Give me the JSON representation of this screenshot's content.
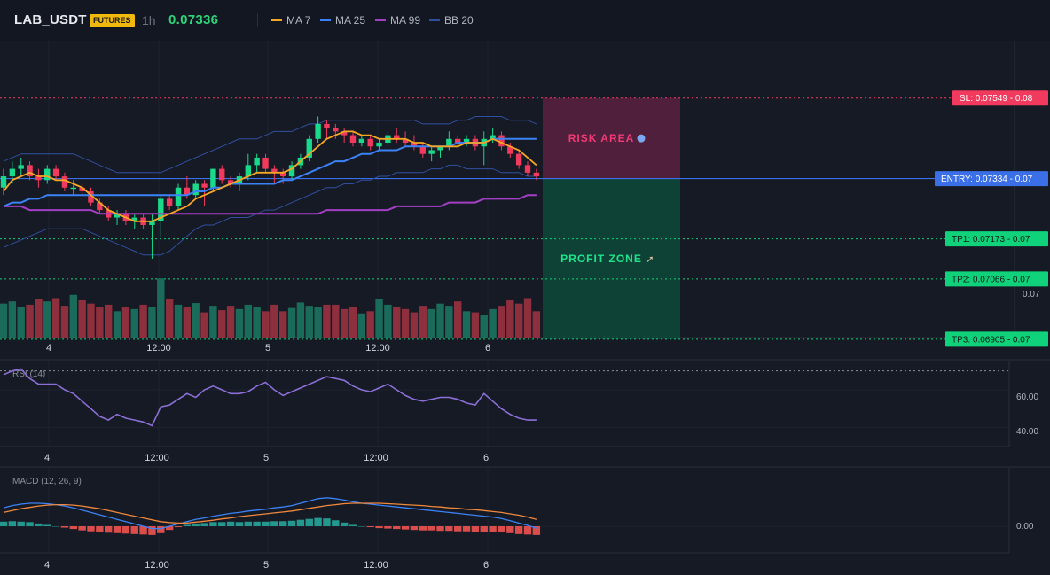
{
  "header": {
    "symbol": "LAB_USDT",
    "badge": "FUTURES",
    "timeframe": "1h",
    "price": "0.07336",
    "legend": [
      {
        "label": "MA 7",
        "color": "#f5a623"
      },
      {
        "label": "MA 25",
        "color": "#3b82f6"
      },
      {
        "label": "MA 99",
        "color": "#a43fc5"
      },
      {
        "label": "BB 20",
        "color": "#2f4f9e"
      }
    ]
  },
  "colors": {
    "up": "#19d98a",
    "down": "#f23a5e",
    "vol_up": "#1b6b5b",
    "vol_down": "#8e2f3e",
    "bg": "#161a25",
    "grid": "#1f2330"
  },
  "overlays": {
    "risk_label": "RISK AREA",
    "profit_label": "PROFIT ZONE",
    "sl_label": "SL: 0.07549 - 0.08",
    "entry_label": "ENTRY: 0.07334 - 0.07",
    "tp1_label": "TP1: 0.07173 - 0.07",
    "tp2_label": "TP2: 0.07066 - 0.07",
    "tp3_label": "TP3: 0.06905 - 0.07",
    "axis_price_label": "0.07",
    "sl": 0.07549,
    "entry": 0.07334,
    "tp1": 0.07173,
    "tp2": 0.07066,
    "tp3": 0.06905
  },
  "x_ticks": [
    "4",
    "12:00",
    "5",
    "12:00",
    "6"
  ],
  "chart_data": [
    {
      "type": "candlestick",
      "title": "LAB_USDT 1h",
      "candles": [
        [
          0.0731,
          0.0736,
          0.0729,
          0.0734
        ],
        [
          0.0734,
          0.0738,
          0.0732,
          0.0736
        ],
        [
          0.0736,
          0.0739,
          0.0734,
          0.0737
        ],
        [
          0.0737,
          0.0738,
          0.0733,
          0.0734
        ],
        [
          0.0734,
          0.0736,
          0.0731,
          0.0733
        ],
        [
          0.0733,
          0.0737,
          0.0732,
          0.0736
        ],
        [
          0.0736,
          0.0737,
          0.0733,
          0.0734
        ],
        [
          0.0734,
          0.0735,
          0.073,
          0.0731
        ],
        [
          0.0731,
          0.0733,
          0.0729,
          0.0731
        ],
        [
          0.0731,
          0.0732,
          0.0729,
          0.073
        ],
        [
          0.073,
          0.0731,
          0.0726,
          0.0727
        ],
        [
          0.0727,
          0.0728,
          0.0724,
          0.0725
        ],
        [
          0.0725,
          0.0726,
          0.0722,
          0.0723
        ],
        [
          0.0723,
          0.0725,
          0.0721,
          0.0724
        ],
        [
          0.0724,
          0.0725,
          0.0721,
          0.0722
        ],
        [
          0.0722,
          0.0724,
          0.072,
          0.0723
        ],
        [
          0.0723,
          0.0724,
          0.072,
          0.0721
        ],
        [
          0.0721,
          0.0724,
          0.0712,
          0.0722
        ],
        [
          0.0722,
          0.0729,
          0.0718,
          0.0728
        ],
        [
          0.0728,
          0.0729,
          0.0725,
          0.0726
        ],
        [
          0.0726,
          0.0732,
          0.0725,
          0.0731
        ],
        [
          0.0731,
          0.0734,
          0.0728,
          0.0729
        ],
        [
          0.0729,
          0.0733,
          0.0728,
          0.0732
        ],
        [
          0.0732,
          0.0733,
          0.0726,
          0.0731
        ],
        [
          0.0731,
          0.0736,
          0.073,
          0.0736
        ],
        [
          0.0736,
          0.0737,
          0.0732,
          0.0733
        ],
        [
          0.0733,
          0.0734,
          0.0731,
          0.0732
        ],
        [
          0.0732,
          0.0735,
          0.073,
          0.0734
        ],
        [
          0.0734,
          0.074,
          0.0733,
          0.0737
        ],
        [
          0.0737,
          0.074,
          0.0735,
          0.0739
        ],
        [
          0.0739,
          0.074,
          0.0735,
          0.0736
        ],
        [
          0.0736,
          0.0737,
          0.0732,
          0.0735
        ],
        [
          0.0735,
          0.0736,
          0.0732,
          0.0734
        ],
        [
          0.0734,
          0.0738,
          0.0733,
          0.0737
        ],
        [
          0.0737,
          0.074,
          0.0736,
          0.0739
        ],
        [
          0.0739,
          0.0745,
          0.0738,
          0.0744
        ],
        [
          0.0744,
          0.075,
          0.0743,
          0.0748
        ],
        [
          0.0748,
          0.0749,
          0.0744,
          0.0747
        ],
        [
          0.0747,
          0.0748,
          0.0744,
          0.0746
        ],
        [
          0.0746,
          0.0747,
          0.0743,
          0.0745
        ],
        [
          0.0745,
          0.0746,
          0.0742,
          0.0743
        ],
        [
          0.0743,
          0.0745,
          0.0742,
          0.0744
        ],
        [
          0.0744,
          0.0745,
          0.0741,
          0.0742
        ],
        [
          0.0742,
          0.0744,
          0.0741,
          0.0743
        ],
        [
          0.0743,
          0.0746,
          0.0742,
          0.0745
        ],
        [
          0.0745,
          0.0747,
          0.0743,
          0.0744
        ],
        [
          0.0744,
          0.0746,
          0.0742,
          0.0743
        ],
        [
          0.0743,
          0.0745,
          0.0741,
          0.0742
        ],
        [
          0.0742,
          0.0743,
          0.0739,
          0.074
        ],
        [
          0.074,
          0.0742,
          0.0738,
          0.0741
        ],
        [
          0.0741,
          0.0742,
          0.0739,
          0.0742
        ],
        [
          0.0742,
          0.0746,
          0.0741,
          0.0744
        ],
        [
          0.0744,
          0.0745,
          0.0742,
          0.0743
        ],
        [
          0.0743,
          0.0745,
          0.0742,
          0.0744
        ],
        [
          0.0744,
          0.0745,
          0.0741,
          0.0742
        ],
        [
          0.0742,
          0.0746,
          0.0737,
          0.0744
        ],
        [
          0.0744,
          0.0747,
          0.0743,
          0.0745
        ],
        [
          0.0745,
          0.0746,
          0.0741,
          0.0742
        ],
        [
          0.0742,
          0.0743,
          0.0739,
          0.074
        ],
        [
          0.074,
          0.0741,
          0.0736,
          0.0737
        ],
        [
          0.0737,
          0.0738,
          0.0734,
          0.0735
        ],
        [
          0.0735,
          0.0736,
          0.0733,
          0.0734
        ]
      ],
      "volume": [
        62,
        66,
        55,
        60,
        70,
        66,
        72,
        58,
        78,
        68,
        62,
        55,
        60,
        48,
        55,
        52,
        60,
        55,
        108,
        70,
        60,
        56,
        63,
        46,
        58,
        50,
        58,
        52,
        60,
        56,
        48,
        60,
        48,
        54,
        64,
        58,
        56,
        60,
        60,
        52,
        56,
        44,
        48,
        70,
        60,
        56,
        52,
        46,
        58,
        52,
        62,
        58,
        66,
        48,
        46,
        42,
        52,
        58,
        68,
        62,
        72,
        48
      ],
      "ma7": [
        0.073,
        0.0733,
        0.0734,
        0.0735,
        0.0734,
        0.0734,
        0.0733,
        0.0733,
        0.0732,
        0.0731,
        0.0729,
        0.0727,
        0.0725,
        0.0724,
        0.0723,
        0.0722,
        0.0722,
        0.0722,
        0.0723,
        0.0724,
        0.0725,
        0.0726,
        0.0728,
        0.0729,
        0.073,
        0.0731,
        0.0732,
        0.0733,
        0.0734,
        0.0735,
        0.0735,
        0.0735,
        0.0735,
        0.0736,
        0.0738,
        0.074,
        0.0742,
        0.0744,
        0.0745,
        0.0746,
        0.0746,
        0.0745,
        0.0745,
        0.0744,
        0.0744,
        0.0744,
        0.0744,
        0.0743,
        0.0743,
        0.0742,
        0.0742,
        0.0742,
        0.0742,
        0.0743,
        0.0743,
        0.0743,
        0.0744,
        0.0743,
        0.0742,
        0.0741,
        0.0739,
        0.0737
      ],
      "ma25": [
        0.0726,
        0.0727,
        0.0727,
        0.0728,
        0.0728,
        0.0729,
        0.0729,
        0.0729,
        0.0729,
        0.0729,
        0.0729,
        0.0729,
        0.0729,
        0.0729,
        0.0729,
        0.0729,
        0.0729,
        0.0729,
        0.0729,
        0.0729,
        0.0729,
        0.0729,
        0.073,
        0.073,
        0.0731,
        0.0731,
        0.0732,
        0.0732,
        0.0732,
        0.0732,
        0.0732,
        0.0732,
        0.0733,
        0.0733,
        0.0734,
        0.0735,
        0.0736,
        0.0737,
        0.0738,
        0.0738,
        0.0739,
        0.074,
        0.074,
        0.0741,
        0.0741,
        0.0741,
        0.0742,
        0.0742,
        0.0742,
        0.0742,
        0.0742,
        0.0742,
        0.0743,
        0.0743,
        0.0743,
        0.0743,
        0.0744,
        0.0744,
        0.0744,
        0.0744,
        0.0744,
        0.0744
      ],
      "ma99": [
        0.0726,
        0.0726,
        0.0726,
        0.0725,
        0.0725,
        0.0725,
        0.0725,
        0.0725,
        0.0725,
        0.0725,
        0.0725,
        0.0724,
        0.0724,
        0.0724,
        0.0724,
        0.0724,
        0.0724,
        0.0724,
        0.0724,
        0.0724,
        0.0724,
        0.0724,
        0.0724,
        0.0724,
        0.0724,
        0.0724,
        0.0724,
        0.0724,
        0.0724,
        0.0724,
        0.0724,
        0.0724,
        0.0724,
        0.0724,
        0.0724,
        0.0724,
        0.0724,
        0.0725,
        0.0725,
        0.0725,
        0.0725,
        0.0725,
        0.0725,
        0.0725,
        0.0725,
        0.0726,
        0.0726,
        0.0726,
        0.0726,
        0.0726,
        0.0726,
        0.0727,
        0.0727,
        0.0727,
        0.0727,
        0.0728,
        0.0728,
        0.0728,
        0.0728,
        0.0728,
        0.0729,
        0.0729
      ],
      "bb_upper": [
        0.0738,
        0.0739,
        0.074,
        0.074,
        0.074,
        0.074,
        0.074,
        0.074,
        0.074,
        0.0739,
        0.0738,
        0.0737,
        0.0736,
        0.0735,
        0.0735,
        0.0735,
        0.0735,
        0.0735,
        0.0735,
        0.0736,
        0.0737,
        0.0738,
        0.0739,
        0.074,
        0.0741,
        0.0742,
        0.0743,
        0.0744,
        0.0744,
        0.0744,
        0.0745,
        0.0746,
        0.0746,
        0.0746,
        0.0747,
        0.0748,
        0.0748,
        0.0749,
        0.0749,
        0.0749,
        0.0749,
        0.0749,
        0.0749,
        0.0749,
        0.0749,
        0.0749,
        0.0749,
        0.0749,
        0.0748,
        0.0748,
        0.0748,
        0.0748,
        0.0749,
        0.0749,
        0.075,
        0.075,
        0.075,
        0.075,
        0.0749,
        0.0749,
        0.0749,
        0.0748
      ],
      "bb_lower": [
        0.0715,
        0.0716,
        0.0717,
        0.0718,
        0.0719,
        0.072,
        0.072,
        0.072,
        0.072,
        0.072,
        0.0719,
        0.0718,
        0.0717,
        0.0716,
        0.0715,
        0.0714,
        0.0713,
        0.0713,
        0.0713,
        0.0714,
        0.0716,
        0.0718,
        0.072,
        0.0721,
        0.0721,
        0.0722,
        0.0723,
        0.0723,
        0.0723,
        0.0724,
        0.0725,
        0.0725,
        0.0726,
        0.0727,
        0.0728,
        0.0729,
        0.073,
        0.0731,
        0.0731,
        0.0732,
        0.0732,
        0.0733,
        0.0733,
        0.0734,
        0.0734,
        0.0735,
        0.0735,
        0.0735,
        0.0735,
        0.0736,
        0.0736,
        0.0737,
        0.0737,
        0.0736,
        0.0736,
        0.0736,
        0.0736,
        0.0735,
        0.0735,
        0.0735,
        0.0734,
        0.0734
      ]
    },
    {
      "type": "line",
      "title": "RSI (14)",
      "ylim": [
        30,
        75
      ],
      "y_ticks": [
        "60.00",
        "40.00"
      ],
      "values": [
        68,
        70,
        71,
        66,
        63,
        63,
        63,
        60,
        58,
        54,
        50,
        46,
        44,
        47,
        45,
        44,
        43,
        41,
        51,
        52,
        55,
        58,
        56,
        60,
        62,
        60,
        58,
        58,
        59,
        62,
        64,
        60,
        57,
        59,
        61,
        63,
        65,
        67,
        66,
        65,
        62,
        60,
        59,
        61,
        63,
        60,
        57,
        55,
        54,
        55,
        56,
        56,
        55,
        53,
        52,
        58,
        54,
        50,
        47,
        45,
        44,
        44
      ]
    },
    {
      "type": "bar",
      "title": "MACD (12, 26, 9)",
      "y_ticks": [
        "0.00"
      ],
      "macd": [
        0.0004,
        0.00045,
        0.00048,
        0.0005,
        0.0005,
        0.00049,
        0.00047,
        0.00044,
        0.0004,
        0.00035,
        0.0003,
        0.00025,
        0.0002,
        0.00015,
        0.0001,
        5e-05,
        0.0,
        -5e-05,
        -5e-05,
        0.0,
        5e-05,
        0.0001,
        0.00015,
        0.00018,
        0.00022,
        0.00025,
        0.00028,
        0.0003,
        0.00033,
        0.00035,
        0.00037,
        0.0004,
        0.00042,
        0.00045,
        0.0005,
        0.00055,
        0.0006,
        0.00062,
        0.0006,
        0.00057,
        0.00053,
        0.0005,
        0.00048,
        0.00046,
        0.00044,
        0.00042,
        0.0004,
        0.00038,
        0.00036,
        0.00034,
        0.00032,
        0.0003,
        0.00028,
        0.00026,
        0.00024,
        0.00022,
        0.0002,
        0.00017,
        0.00012,
        7e-05,
        2e-05,
        -4e-05
      ],
      "signal": [
        0.0003,
        0.00034,
        0.00038,
        0.00041,
        0.00044,
        0.00046,
        0.00047,
        0.00047,
        0.00046,
        0.00044,
        0.00041,
        0.00038,
        0.00034,
        0.0003,
        0.00026,
        0.00022,
        0.00018,
        0.00014,
        0.0001,
        8e-05,
        7e-05,
        7e-05,
        9e-05,
        0.00011,
        0.00013,
        0.00016,
        0.00018,
        0.00021,
        0.00023,
        0.00025,
        0.00027,
        0.00029,
        0.00031,
        0.00033,
        0.00036,
        0.00039,
        0.00042,
        0.00045,
        0.00047,
        0.00049,
        0.0005,
        0.0005,
        0.0005,
        0.0005,
        0.00049,
        0.00048,
        0.00047,
        0.00046,
        0.00045,
        0.00043,
        0.00042,
        0.0004,
        0.00039,
        0.00037,
        0.00036,
        0.00034,
        0.00032,
        0.0003,
        0.00027,
        0.00024,
        0.0002,
        0.00015
      ],
      "histogram": [
        0.0001,
        0.00011,
        0.0001,
        9e-05,
        6e-05,
        3e-05,
        0.0,
        -3e-05,
        -6e-05,
        -9e-05,
        -0.00011,
        -0.00013,
        -0.00014,
        -0.00015,
        -0.00016,
        -0.00017,
        -0.00018,
        -0.00019,
        -0.00015,
        -8e-05,
        -2e-05,
        3e-05,
        6e-05,
        7e-05,
        9e-05,
        9e-05,
        0.0001,
        9e-05,
        0.0001,
        0.0001,
        0.0001,
        0.00011,
        0.00011,
        0.00012,
        0.00014,
        0.00016,
        0.00018,
        0.00017,
        0.00013,
        8e-05,
        3e-05,
        0.0,
        -2e-05,
        -4e-05,
        -5e-05,
        -6e-05,
        -7e-05,
        -8e-05,
        -9e-05,
        -9e-05,
        -0.0001,
        -0.0001,
        -0.00011,
        -0.00011,
        -0.00012,
        -0.00012,
        -0.00012,
        -0.00013,
        -0.00015,
        -0.00017,
        -0.00018,
        -0.00019
      ]
    }
  ]
}
